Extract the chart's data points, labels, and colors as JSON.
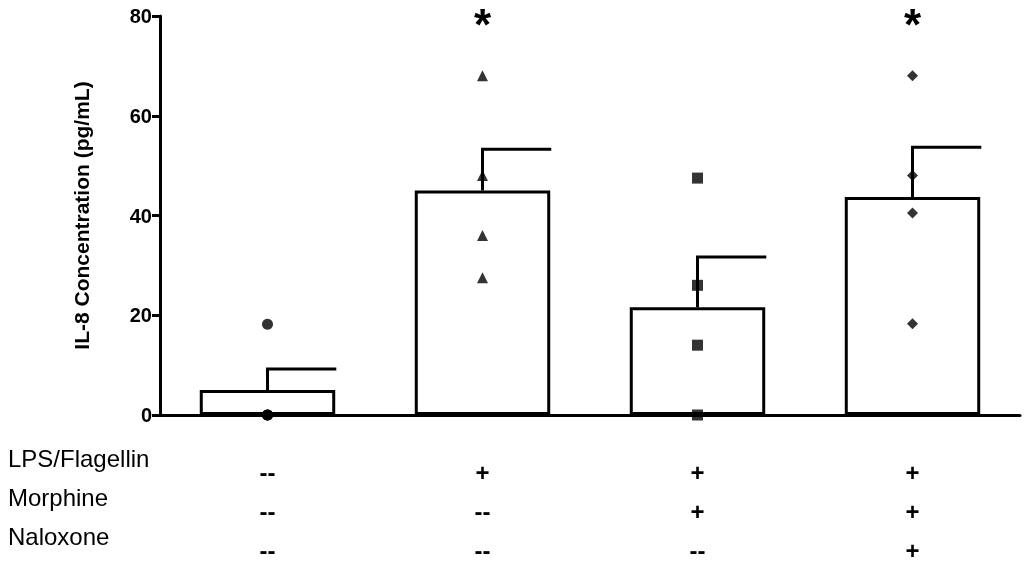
{
  "chart_data": {
    "type": "bar",
    "ylabel": "IL-8 Concentration (pg/mL)",
    "categories": [
      "--\n--\n--",
      "+\n--\n--",
      "+\n+\n--",
      "+\n+\n+"
    ],
    "ylim": [
      0,
      80
    ],
    "yticks": [
      0,
      20,
      40,
      60,
      80
    ],
    "series": [
      {
        "type": "bar",
        "color": "#ffffff",
        "values": [
          5,
          45,
          21.6,
          43.7
        ],
        "errors": [
          [
            5,
            9.2
          ],
          [
            45,
            53.3
          ],
          [
            21.6,
            31.7
          ],
          [
            43.7,
            53.7
          ]
        ]
      },
      {
        "type": "scatter",
        "marker": "circle",
        "color": "#000000",
        "x": [
          "--\n--\n--",
          "--\n--\n--",
          "--\n--\n--",
          "--\n--\n--"
        ],
        "values": [
          18.2,
          0,
          0,
          0
        ]
      },
      {
        "type": "scatter",
        "marker": "triangle",
        "color": "#000000",
        "x": [
          "+\n--\n--",
          "+\n--\n--",
          "+\n--\n--",
          "+\n--\n--"
        ],
        "values": [
          68,
          48,
          36,
          27.5
        ]
      },
      {
        "type": "scatter",
        "marker": "square",
        "color": "#000000",
        "x": [
          "+\n+\n--",
          "+\n+\n--",
          "+\n+\n--",
          "+\n+\n--"
        ],
        "values": [
          47.5,
          26,
          14,
          0
        ]
      },
      {
        "type": "scatter",
        "marker": "diamond",
        "color": "#000000",
        "x": [
          "+\n+\n+",
          "+\n+\n+",
          "+\n+\n+",
          "+\n+\n+"
        ],
        "values": [
          68,
          48,
          40.5,
          18.3
        ]
      }
    ],
    "annotations": [
      "LPS/Flagellin",
      "Morphine",
      "Naloxone",
      "*",
      "*"
    ]
  }
}
